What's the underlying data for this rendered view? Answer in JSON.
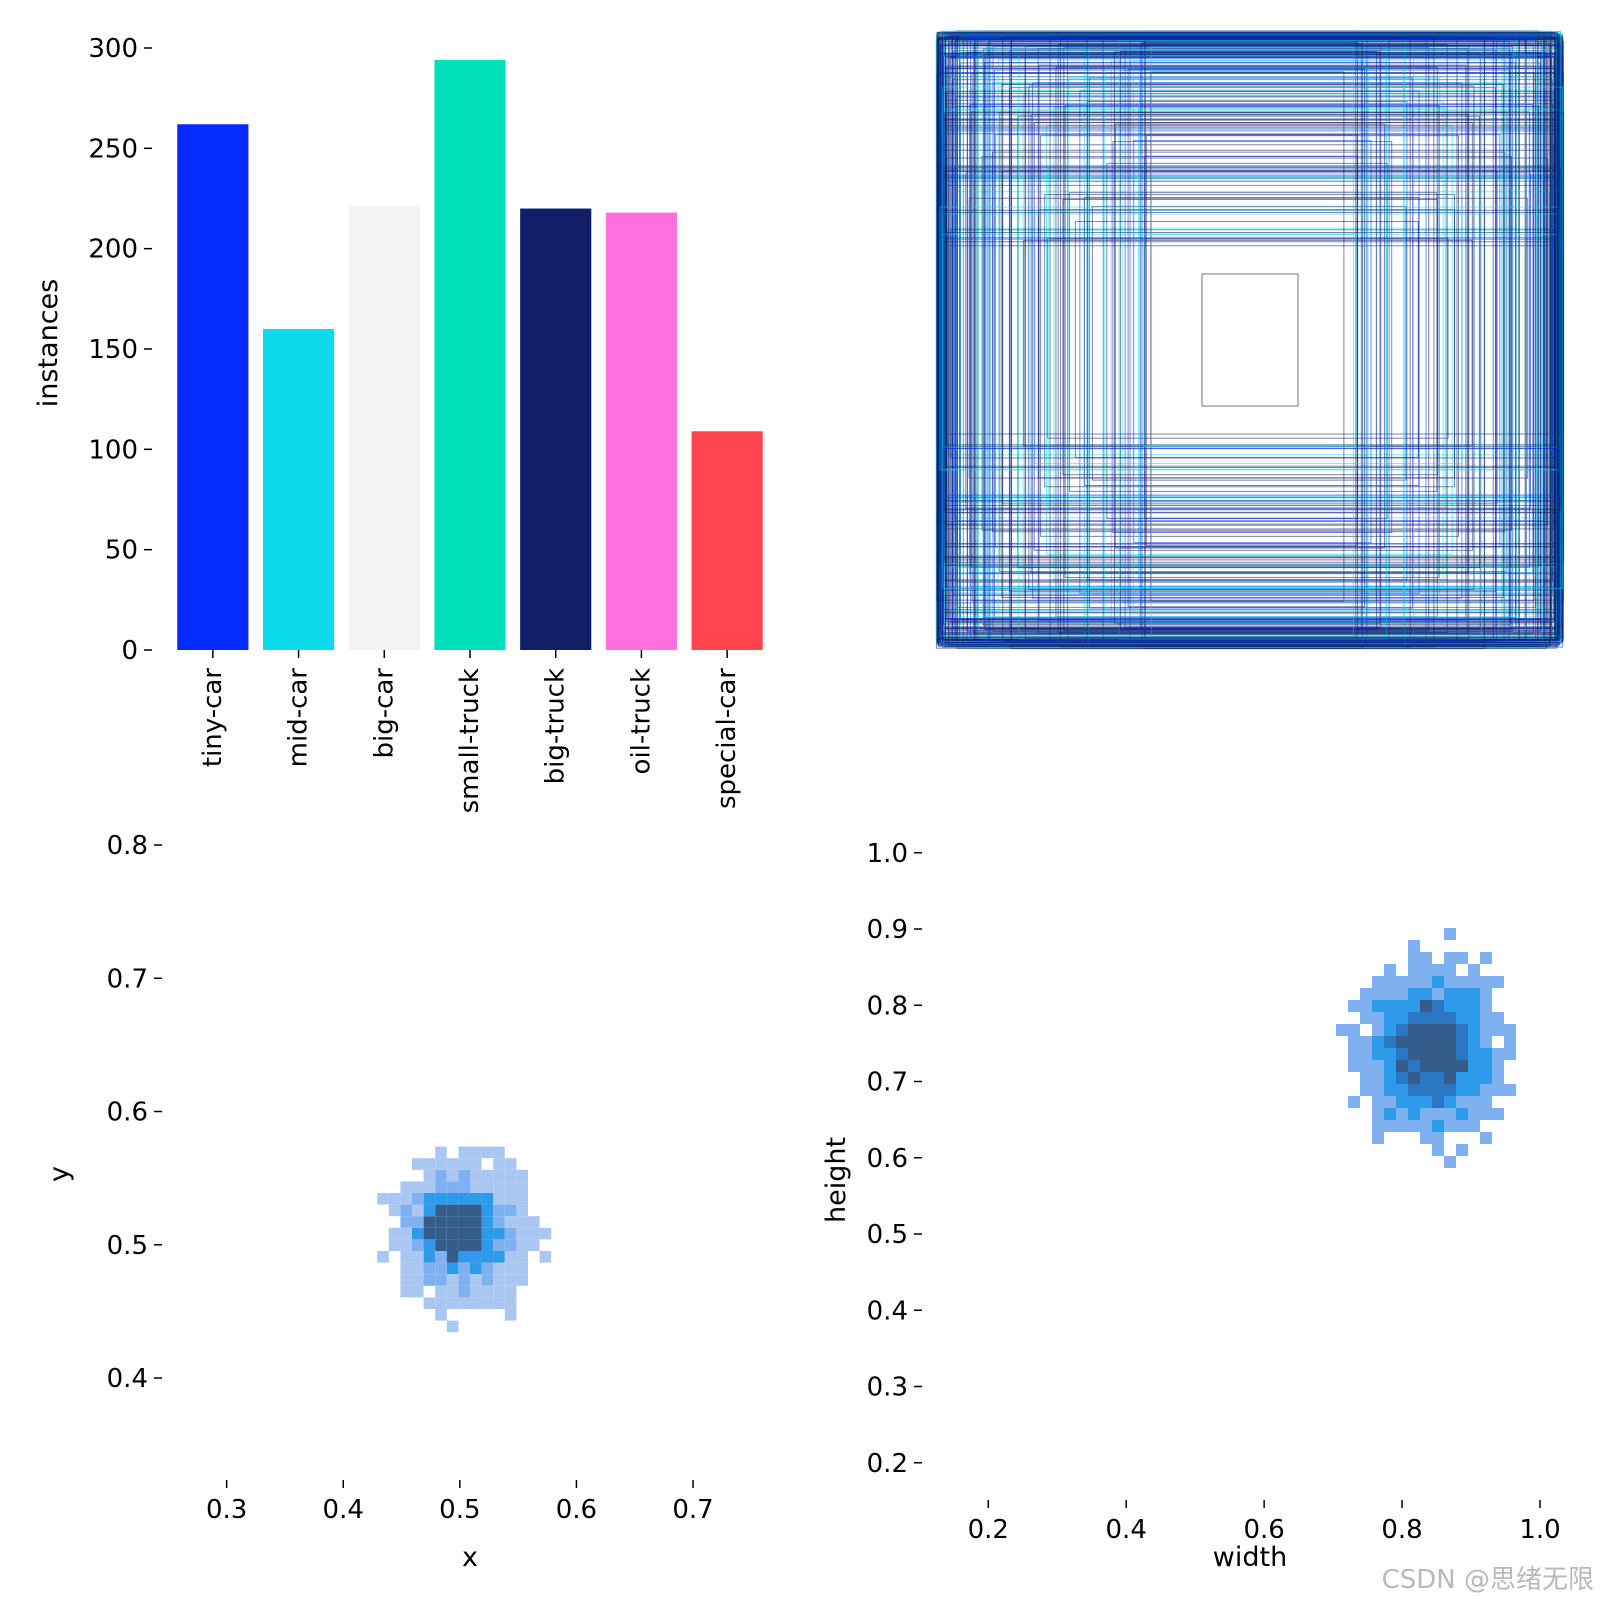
{
  "watermark": "CSDN @思绪无限",
  "chart_data": [
    {
      "type": "bar",
      "categories": [
        "tiny-car",
        "mid-car",
        "big-car",
        "small-truck",
        "big-truck",
        "oil-truck",
        "special-car"
      ],
      "values": [
        262,
        160,
        221,
        294,
        220,
        218,
        109
      ],
      "colors": [
        "#042aff",
        "#0bdbeb",
        "#f3f3f3",
        "#00dfb7",
        "#111f68",
        "#ff6fdd",
        "#ff444f"
      ],
      "xlabel": "",
      "ylabel": "instances",
      "ylim": [
        0,
        300
      ],
      "yticks": [
        0,
        50,
        100,
        150,
        200,
        250,
        300
      ],
      "grid": false
    },
    {
      "type": "boxes",
      "description_of_marks": "overlaid bounding-box outlines centred on the image, colored by class",
      "box_colors": [
        "#111f68",
        "#0bdbeb",
        "#042aff",
        "#8a8a8a"
      ],
      "axes": "off"
    },
    {
      "type": "heatmap",
      "xlabel": "x",
      "ylabel": "y",
      "xlim": [
        0.26,
        0.76
      ],
      "ylim": [
        0.34,
        0.8
      ],
      "xticks": [
        0.3,
        0.4,
        0.5,
        0.6,
        0.7
      ],
      "yticks": [
        0.4,
        0.5,
        0.6,
        0.7,
        0.8
      ],
      "center": [
        0.5,
        0.51
      ],
      "spread": [
        0.06,
        0.055
      ],
      "colors": [
        "#aac7f2",
        "#7fb0ef",
        "#2d9be9",
        "#355c8a"
      ]
    },
    {
      "type": "heatmap",
      "xlabel": "width",
      "ylabel": "height",
      "xlim": [
        0.13,
        1.0
      ],
      "ylim": [
        0.18,
        0.98
      ],
      "xticks": [
        0.2,
        0.4,
        0.6,
        0.8,
        1.0
      ],
      "yticks": [
        0.2,
        0.3,
        0.4,
        0.5,
        0.6,
        0.7,
        0.8,
        0.9,
        1.0
      ],
      "center": [
        0.84,
        0.74
      ],
      "spread": [
        0.11,
        0.12
      ],
      "colors": [
        "#7fb0ef",
        "#2d9be9",
        "#2c77c4",
        "#355c8a"
      ]
    }
  ]
}
